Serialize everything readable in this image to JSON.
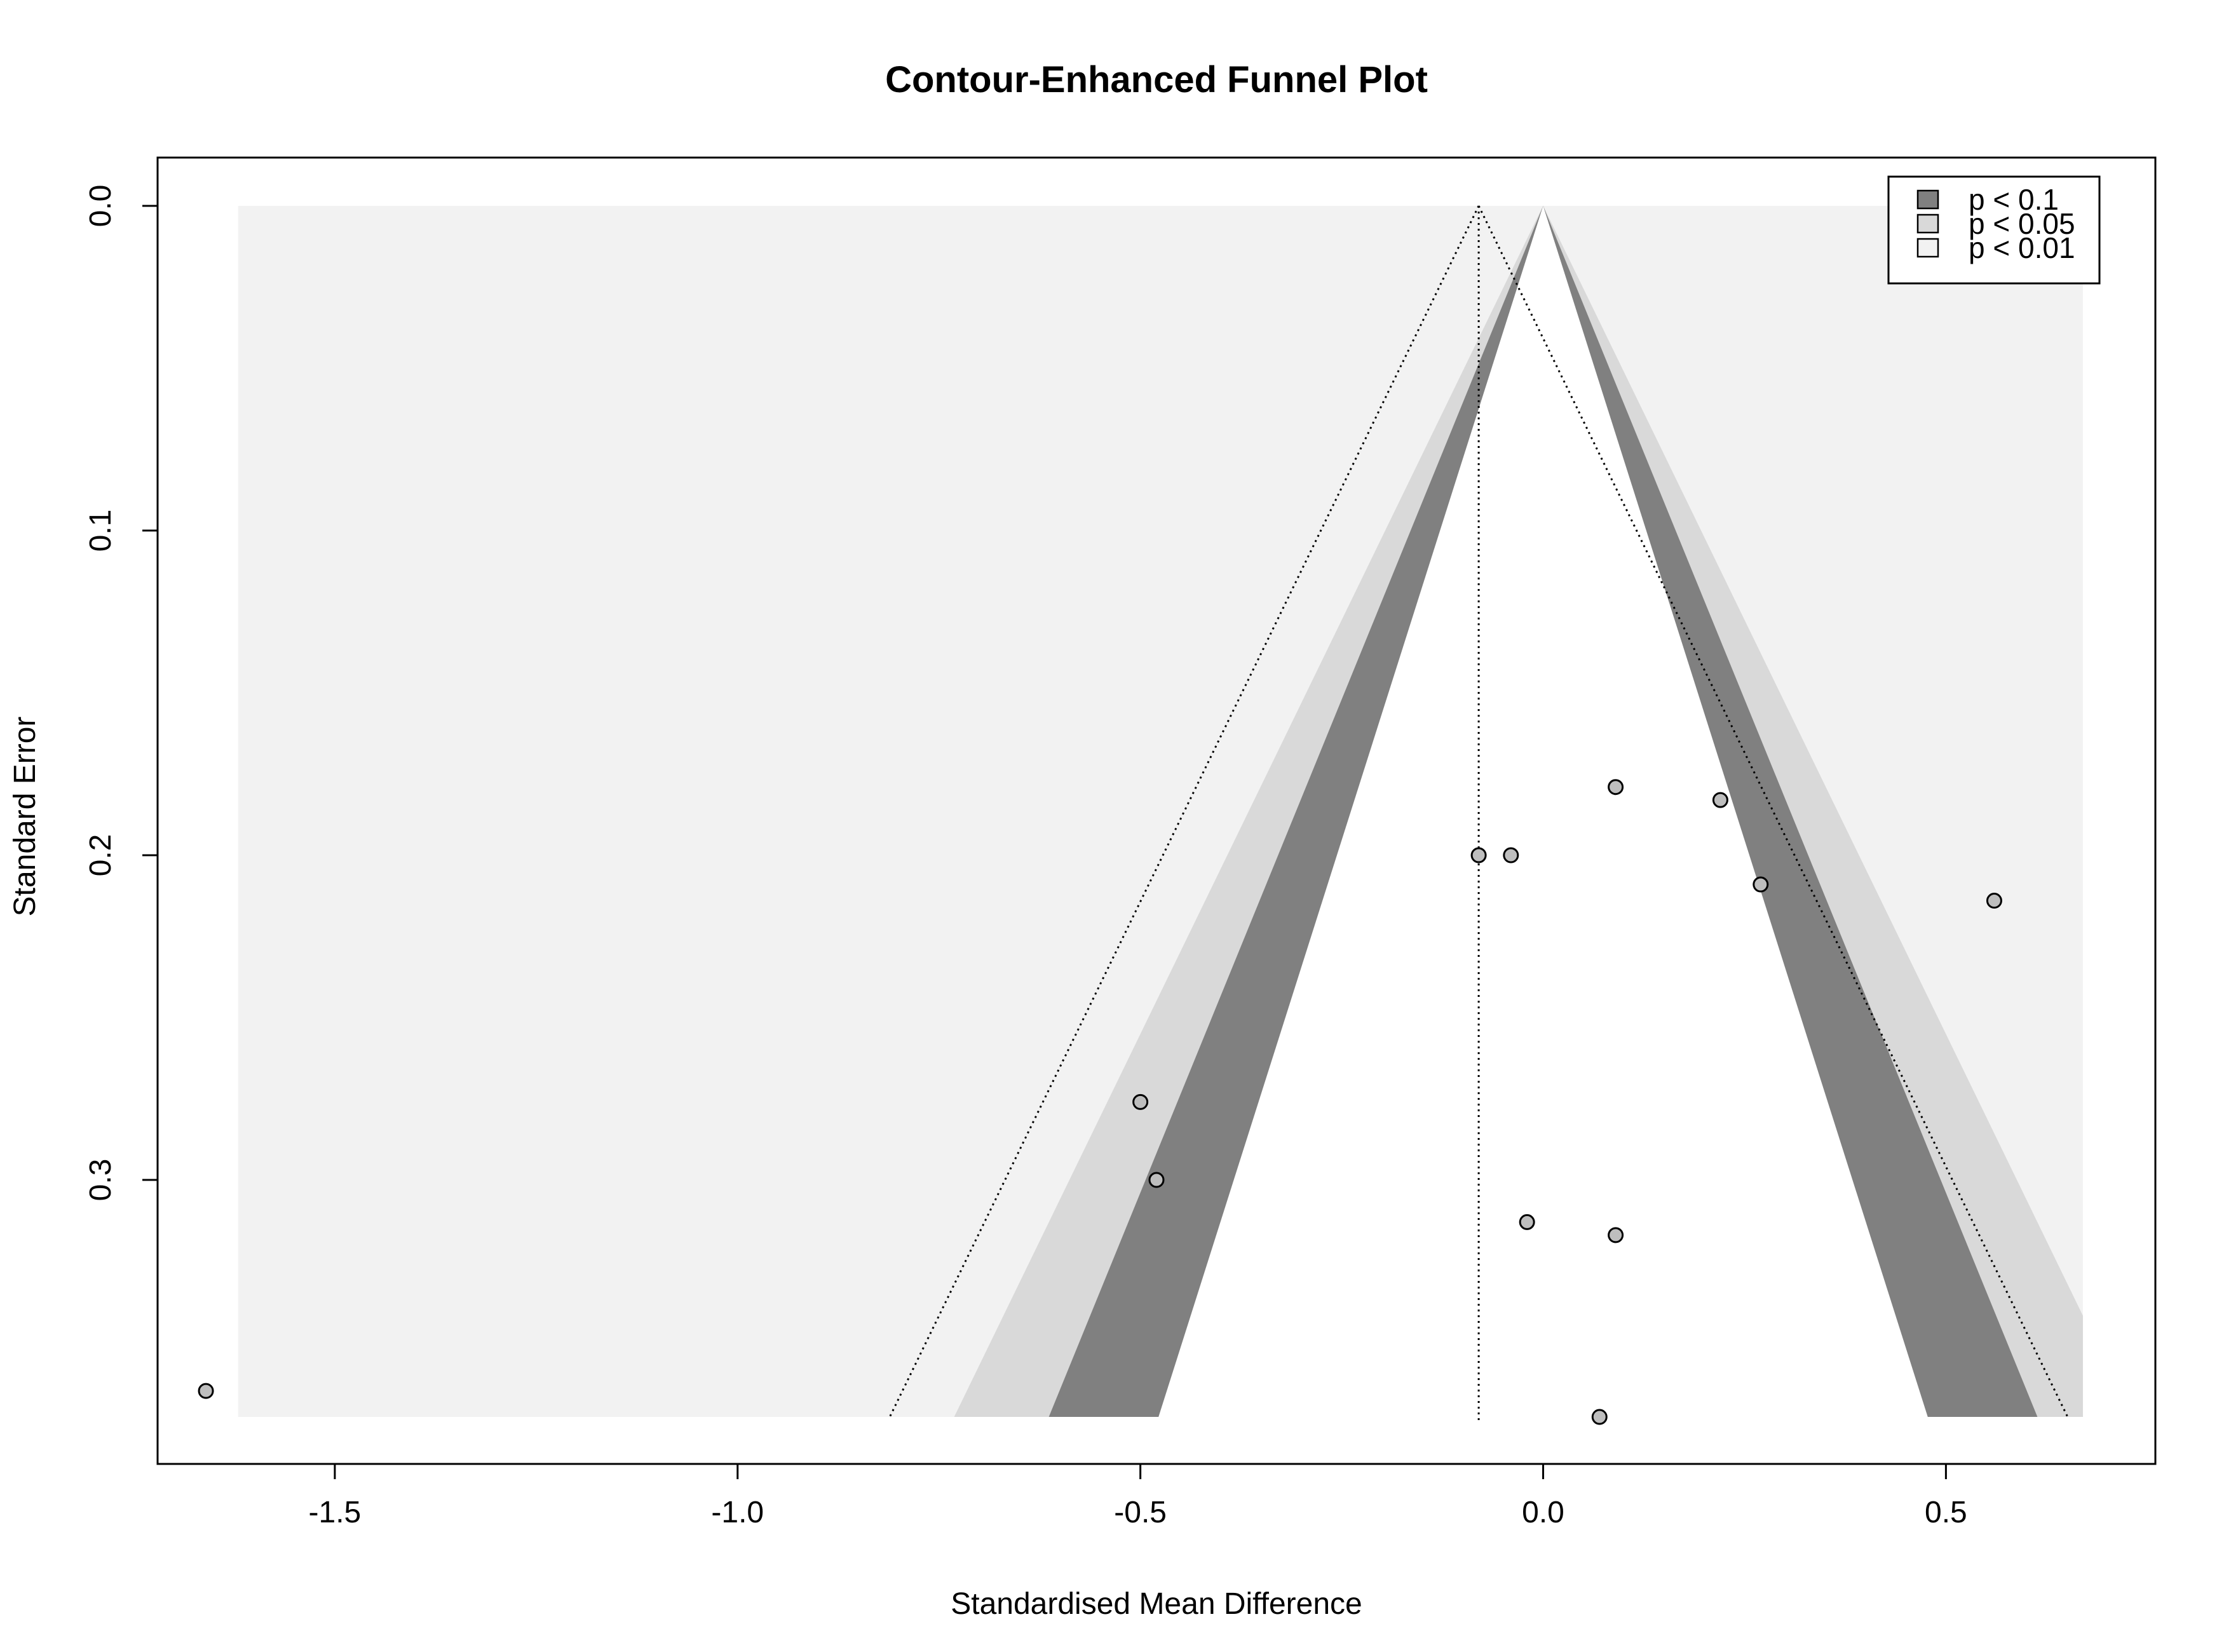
{
  "chart_data": {
    "type": "scatter",
    "title": "Contour-Enhanced Funnel Plot",
    "xlabel": "Standardised Mean Difference",
    "ylabel": "Standard Error",
    "xlim": [
      -1.72,
      0.76
    ],
    "ylim": [
      0.0,
      0.38
    ],
    "y_reversed": true,
    "x_ticks": [
      -1.5,
      -1.0,
      -0.5,
      0.0,
      0.5
    ],
    "x_tick_labels": [
      "-1.5",
      "-1.0",
      "-0.5",
      "0.0",
      "0.5"
    ],
    "y_ticks": [
      0.0,
      0.1,
      0.2,
      0.3
    ],
    "y_tick_labels": [
      "0.0",
      "0.1",
      "0.2",
      "0.3"
    ],
    "region_x_range": [
      -1.62,
      0.67
    ],
    "max_se": 0.373,
    "contour_center": 0.0,
    "pooled_estimate": -0.08,
    "contours": [
      {
        "label": "p < 0.1",
        "z_outer": 1.645,
        "z_inner": 0.0,
        "color": "#808080"
      },
      {
        "label": "p < 0.05",
        "z_outer": 1.96,
        "z_inner": 1.645,
        "color": "#d9d9d9"
      },
      {
        "label": "p < 0.01",
        "z_outer": 2.576,
        "z_inner": 1.96,
        "color": "#f2f2f2"
      }
    ],
    "legend": {
      "position": "top-right",
      "entries": [
        {
          "label": "p < 0.1",
          "color": "#808080"
        },
        {
          "label": "p < 0.05",
          "color": "#d9d9d9"
        },
        {
          "label": "p < 0.01",
          "color": "#f2f2f2"
        }
      ]
    },
    "grid": false,
    "points": [
      {
        "x": 0.09,
        "y": 0.179
      },
      {
        "x": 0.22,
        "y": 0.183
      },
      {
        "x": -0.08,
        "y": 0.2
      },
      {
        "x": -0.04,
        "y": 0.2
      },
      {
        "x": 0.27,
        "y": 0.209
      },
      {
        "x": 0.56,
        "y": 0.214
      },
      {
        "x": -0.5,
        "y": 0.276
      },
      {
        "x": -0.48,
        "y": 0.3
      },
      {
        "x": -0.02,
        "y": 0.313
      },
      {
        "x": 0.09,
        "y": 0.317
      },
      {
        "x": -1.66,
        "y": 0.365
      },
      {
        "x": 0.07,
        "y": 0.373
      }
    ],
    "colors": {
      "point_fill": "#bebebe",
      "point_stroke": "#000000",
      "box": "#000000",
      "dotted_lines": "#000000"
    }
  }
}
